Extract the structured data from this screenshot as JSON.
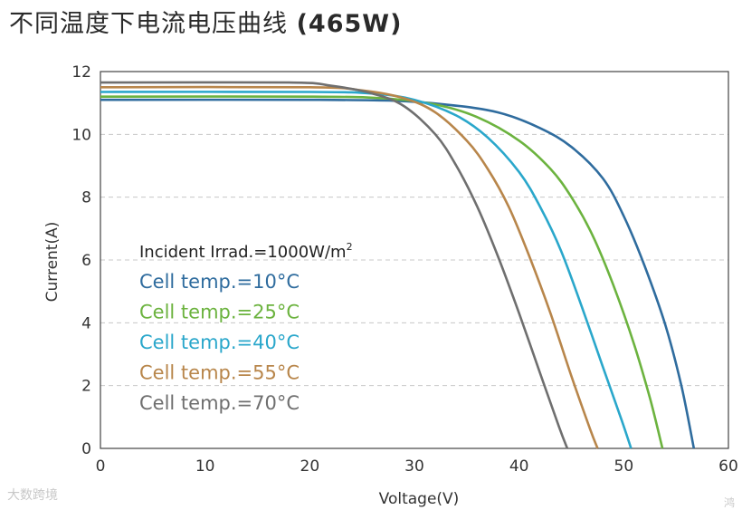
{
  "title_prefix": "不同温度下电流电压曲线 ",
  "title_bold": "(465W)",
  "watermark": "大数跨境",
  "watermark_corner": "鸿",
  "colors": {
    "10": "#2f6c9e",
    "25": "#6cb33f",
    "40": "#2aa7cb",
    "55": "#b8864b",
    "70": "#6f6f6f",
    "grid": "#c8c8c8",
    "axis": "#444444"
  },
  "chart_data": {
    "type": "line",
    "title": "不同温度下电流电压曲线 (465W)",
    "xlabel": "Voltage(V)",
    "ylabel": "Current(A)",
    "xlim": [
      0,
      60
    ],
    "ylim": [
      0,
      12
    ],
    "xticks": [
      0,
      10,
      20,
      30,
      40,
      50,
      60
    ],
    "yticks": [
      0,
      2,
      4,
      6,
      8,
      10,
      12
    ],
    "grid": "horizontal-dashed",
    "annotation": {
      "text": "Incident Irrad.=1000W/m",
      "superscript": "2"
    },
    "series": [
      {
        "name": "Cell temp.=10°C",
        "key": "10",
        "points": [
          [
            0,
            11.1
          ],
          [
            20,
            11.1
          ],
          [
            28,
            11.07
          ],
          [
            33,
            10.95
          ],
          [
            38,
            10.7
          ],
          [
            42,
            10.2
          ],
          [
            45,
            9.6
          ],
          [
            48,
            8.6
          ],
          [
            50,
            7.4
          ],
          [
            52,
            5.8
          ],
          [
            54,
            3.9
          ],
          [
            55.5,
            2.0
          ],
          [
            56.7,
            0
          ]
        ]
      },
      {
        "name": "Cell temp.=25°C",
        "key": "25",
        "points": [
          [
            0,
            11.2
          ],
          [
            20,
            11.2
          ],
          [
            27,
            11.15
          ],
          [
            32,
            10.95
          ],
          [
            36,
            10.55
          ],
          [
            40,
            9.8
          ],
          [
            43,
            8.9
          ],
          [
            45,
            8.0
          ],
          [
            47,
            6.8
          ],
          [
            49,
            5.2
          ],
          [
            51,
            3.3
          ],
          [
            52.5,
            1.6
          ],
          [
            53.7,
            0
          ]
        ]
      },
      {
        "name": "Cell temp.=40°C",
        "key": "40",
        "points": [
          [
            0,
            11.35
          ],
          [
            20,
            11.35
          ],
          [
            26,
            11.3
          ],
          [
            30,
            11.1
          ],
          [
            34,
            10.6
          ],
          [
            37,
            9.9
          ],
          [
            40,
            8.8
          ],
          [
            42,
            7.7
          ],
          [
            44,
            6.3
          ],
          [
            46,
            4.5
          ],
          [
            48,
            2.6
          ],
          [
            49.8,
            0.9
          ],
          [
            50.7,
            0
          ]
        ]
      },
      {
        "name": "Cell temp.=55°C",
        "key": "55",
        "points": [
          [
            0,
            11.5
          ],
          [
            20,
            11.5
          ],
          [
            25,
            11.4
          ],
          [
            29,
            11.15
          ],
          [
            32,
            10.7
          ],
          [
            35,
            9.8
          ],
          [
            37,
            8.9
          ],
          [
            39,
            7.7
          ],
          [
            41,
            6.1
          ],
          [
            43,
            4.3
          ],
          [
            45,
            2.3
          ],
          [
            46.8,
            0.6
          ],
          [
            47.5,
            0
          ]
        ]
      },
      {
        "name": "Cell temp.=70°C",
        "key": "70",
        "points": [
          [
            0,
            11.65
          ],
          [
            18,
            11.65
          ],
          [
            22,
            11.55
          ],
          [
            26,
            11.3
          ],
          [
            29,
            10.9
          ],
          [
            32,
            10.0
          ],
          [
            34,
            9.0
          ],
          [
            36,
            7.7
          ],
          [
            38,
            6.1
          ],
          [
            40,
            4.3
          ],
          [
            42,
            2.4
          ],
          [
            43.8,
            0.7
          ],
          [
            44.6,
            0
          ]
        ]
      }
    ]
  }
}
